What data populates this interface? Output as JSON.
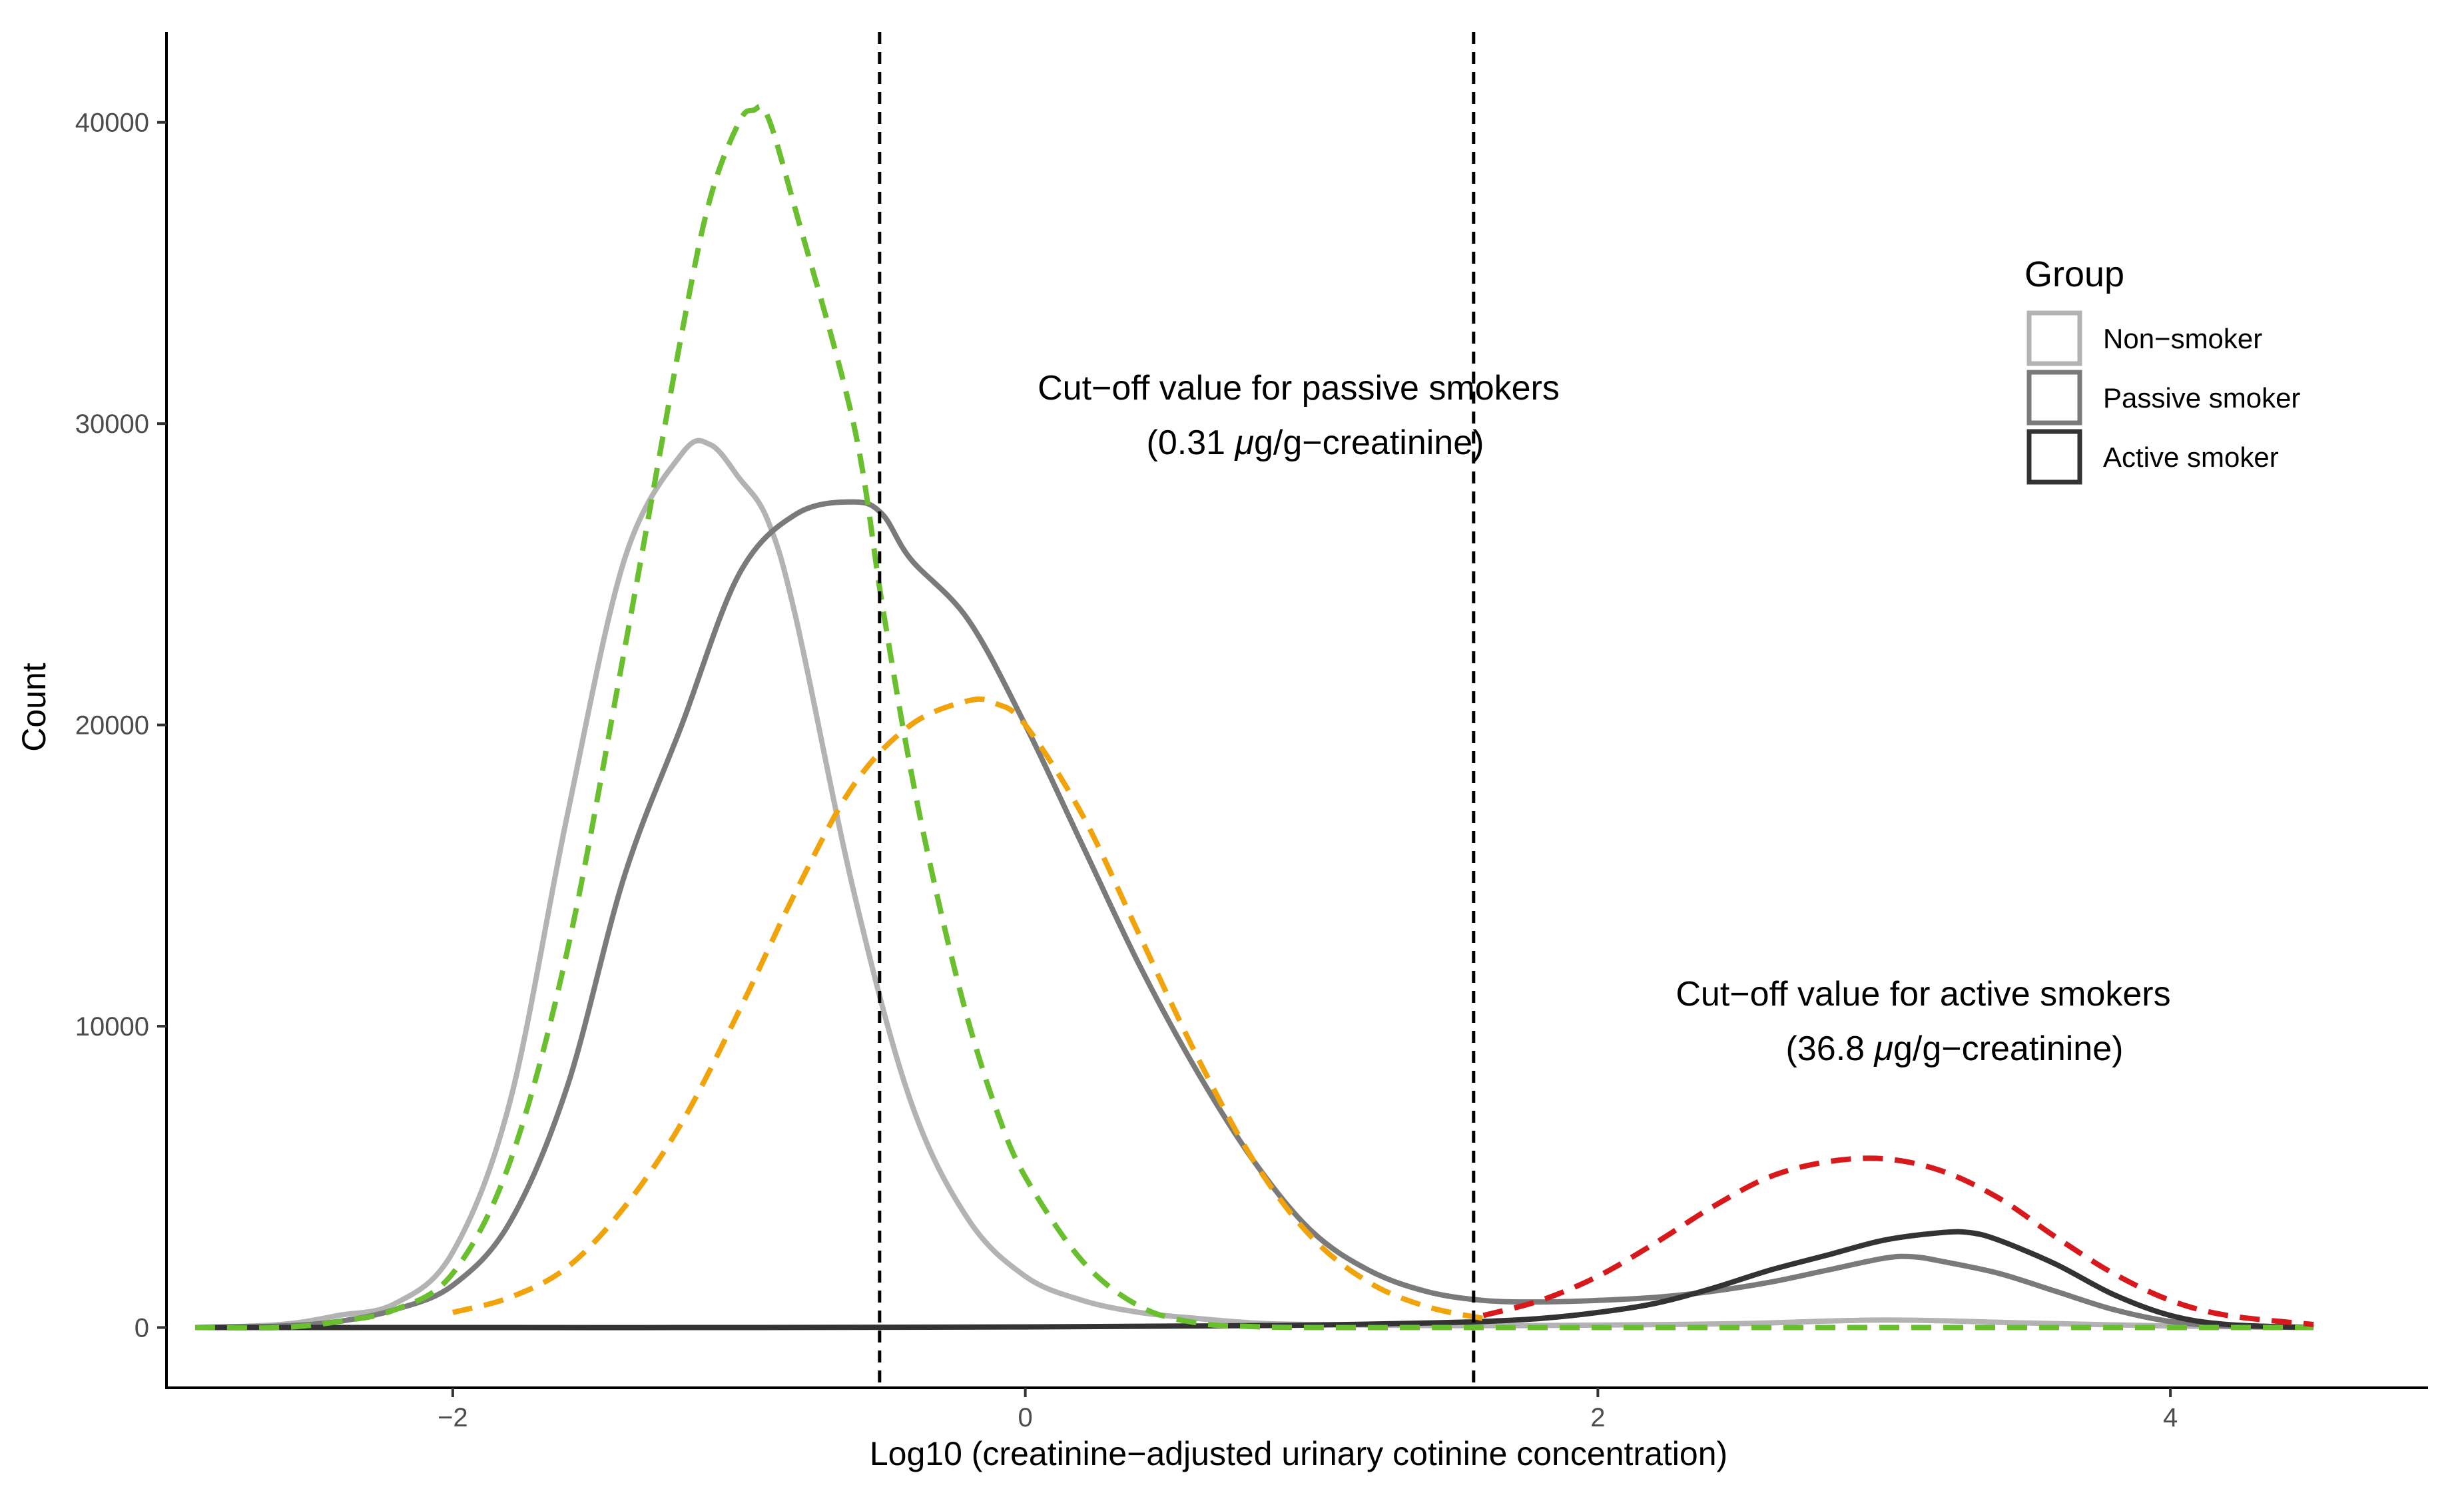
{
  "chart_data": {
    "type": "line",
    "title": "",
    "xlabel": "Log10 (creatinine−adjusted urinary cotinine concentration)",
    "ylabel": "Count",
    "xlim": [
      -3.0,
      4.9
    ],
    "ylim": [
      -2000,
      43000
    ],
    "x_ticks": [
      -2,
      0,
      2,
      4
    ],
    "x_tick_labels": [
      "−2",
      "0",
      "2",
      "4"
    ],
    "y_ticks": [
      0,
      10000,
      20000,
      30000,
      40000
    ],
    "y_tick_labels": [
      "0",
      "10000",
      "20000",
      "30000",
      "40000"
    ],
    "grid": false,
    "cutoffs": [
      {
        "x": -0.509,
        "label_line1": "Cut−off value for passive smokers",
        "label_line2_pre": "(0.31 ",
        "label_line2_mu": "μ",
        "label_line2_post": "g/g−creatinine)"
      },
      {
        "x": 1.566,
        "label_line1": "Cut−off value for active smokers",
        "label_line2_pre": "(36.8 ",
        "label_line2_mu": "μ",
        "label_line2_post": "g/g−creatinine)"
      }
    ],
    "legend": {
      "title": "Group",
      "position": "right",
      "entries": [
        {
          "label": "Non−smoker",
          "color": "#b3b3b3"
        },
        {
          "label": "Passive smoker",
          "color": "#7a7a7a"
        },
        {
          "label": "Active smoker",
          "color": "#333333"
        }
      ]
    },
    "series": [
      {
        "name": "Non-smoker",
        "style": "solid",
        "color": "#b3b3b3",
        "x": [
          -2.9,
          -2.6,
          -2.4,
          -2.2,
          -2.0,
          -1.8,
          -1.6,
          -1.4,
          -1.2,
          -1.1,
          -1.0,
          -0.9,
          -0.8,
          -0.6,
          -0.4,
          -0.2,
          0.0,
          0.2,
          0.4,
          0.6,
          0.8,
          1.0,
          1.5,
          2.0,
          2.5,
          3.0,
          3.5,
          4.0,
          4.5
        ],
        "y": [
          0,
          100,
          400,
          800,
          2500,
          7500,
          17000,
          25500,
          29000,
          29300,
          28200,
          26800,
          23500,
          14500,
          7500,
          3600,
          1700,
          900,
          500,
          300,
          150,
          100,
          60,
          80,
          130,
          250,
          150,
          50,
          0
        ]
      },
      {
        "name": "Passive smoker",
        "style": "solid",
        "color": "#7a7a7a",
        "x": [
          -2.9,
          -2.6,
          -2.4,
          -2.2,
          -2.0,
          -1.8,
          -1.6,
          -1.4,
          -1.2,
          -1.0,
          -0.8,
          -0.6,
          -0.5,
          -0.4,
          -0.2,
          0.0,
          0.2,
          0.4,
          0.6,
          0.8,
          1.0,
          1.2,
          1.4,
          1.6,
          1.8,
          2.0,
          2.2,
          2.4,
          2.6,
          2.8,
          3.0,
          3.1,
          3.2,
          3.4,
          3.6,
          3.8,
          4.0,
          4.2,
          4.5
        ],
        "y": [
          0,
          50,
          200,
          600,
          1400,
          3500,
          8000,
          15000,
          20000,
          25000,
          27000,
          27400,
          27000,
          25500,
          23500,
          20000,
          16000,
          12000,
          8500,
          5500,
          3200,
          1900,
          1200,
          900,
          850,
          900,
          1000,
          1200,
          1500,
          1900,
          2300,
          2350,
          2200,
          1800,
          1200,
          600,
          200,
          50,
          0
        ]
      },
      {
        "name": "Active smoker",
        "style": "solid",
        "color": "#333333",
        "x": [
          -2.9,
          -2.0,
          -1.0,
          0.0,
          0.6,
          1.0,
          1.4,
          1.6,
          1.8,
          2.0,
          2.2,
          2.4,
          2.6,
          2.8,
          3.0,
          3.2,
          3.3,
          3.4,
          3.6,
          3.8,
          4.0,
          4.2,
          4.5
        ],
        "y": [
          0,
          0,
          0,
          20,
          50,
          80,
          150,
          200,
          300,
          500,
          800,
          1300,
          1900,
          2400,
          2900,
          3150,
          3150,
          2900,
          2100,
          1100,
          400,
          100,
          0
        ]
      },
      {
        "name": "Non-smoker fit",
        "style": "dashed",
        "color": "#6abf2f",
        "x": [
          -2.9,
          -2.6,
          -2.4,
          -2.2,
          -2.0,
          -1.8,
          -1.6,
          -1.4,
          -1.2,
          -1.1,
          -1.0,
          -0.95,
          -0.9,
          -0.8,
          -0.6,
          -0.5,
          -0.4,
          -0.3,
          -0.2,
          -0.1,
          0.0,
          0.2,
          0.4,
          0.6,
          0.8,
          1.0,
          1.5,
          2.0,
          2.5,
          3.0,
          3.5,
          4.0,
          4.5
        ],
        "y": [
          0,
          0,
          200,
          600,
          1800,
          5500,
          12500,
          22500,
          33000,
          37500,
          40000,
          40400,
          40200,
          37000,
          30000,
          24000,
          18500,
          14000,
          10200,
          7200,
          5000,
          2200,
          700,
          150,
          30,
          0,
          0,
          0,
          0,
          0,
          0,
          0,
          0
        ]
      },
      {
        "name": "Passive smoker fit",
        "style": "dashed",
        "color": "#f0a30a",
        "x": [
          -2.0,
          -1.8,
          -1.6,
          -1.4,
          -1.2,
          -1.0,
          -0.8,
          -0.6,
          -0.4,
          -0.2,
          -0.1,
          0.0,
          0.2,
          0.4,
          0.6,
          0.8,
          1.0,
          1.2,
          1.4,
          1.6
        ],
        "y": [
          500,
          1000,
          2000,
          4000,
          6800,
          10500,
          14500,
          18000,
          20000,
          20800,
          20700,
          20000,
          17000,
          13000,
          9000,
          5500,
          3000,
          1500,
          700,
          300
        ]
      },
      {
        "name": "Active smoker fit",
        "style": "dashed",
        "color": "#d7191c",
        "x": [
          1.6,
          1.8,
          2.0,
          2.2,
          2.4,
          2.6,
          2.8,
          3.0,
          3.2,
          3.4,
          3.6,
          3.8,
          4.0,
          4.2,
          4.5
        ],
        "y": [
          400,
          900,
          1700,
          2800,
          4000,
          5000,
          5500,
          5600,
          5200,
          4300,
          3000,
          1800,
          900,
          400,
          100
        ]
      }
    ]
  }
}
